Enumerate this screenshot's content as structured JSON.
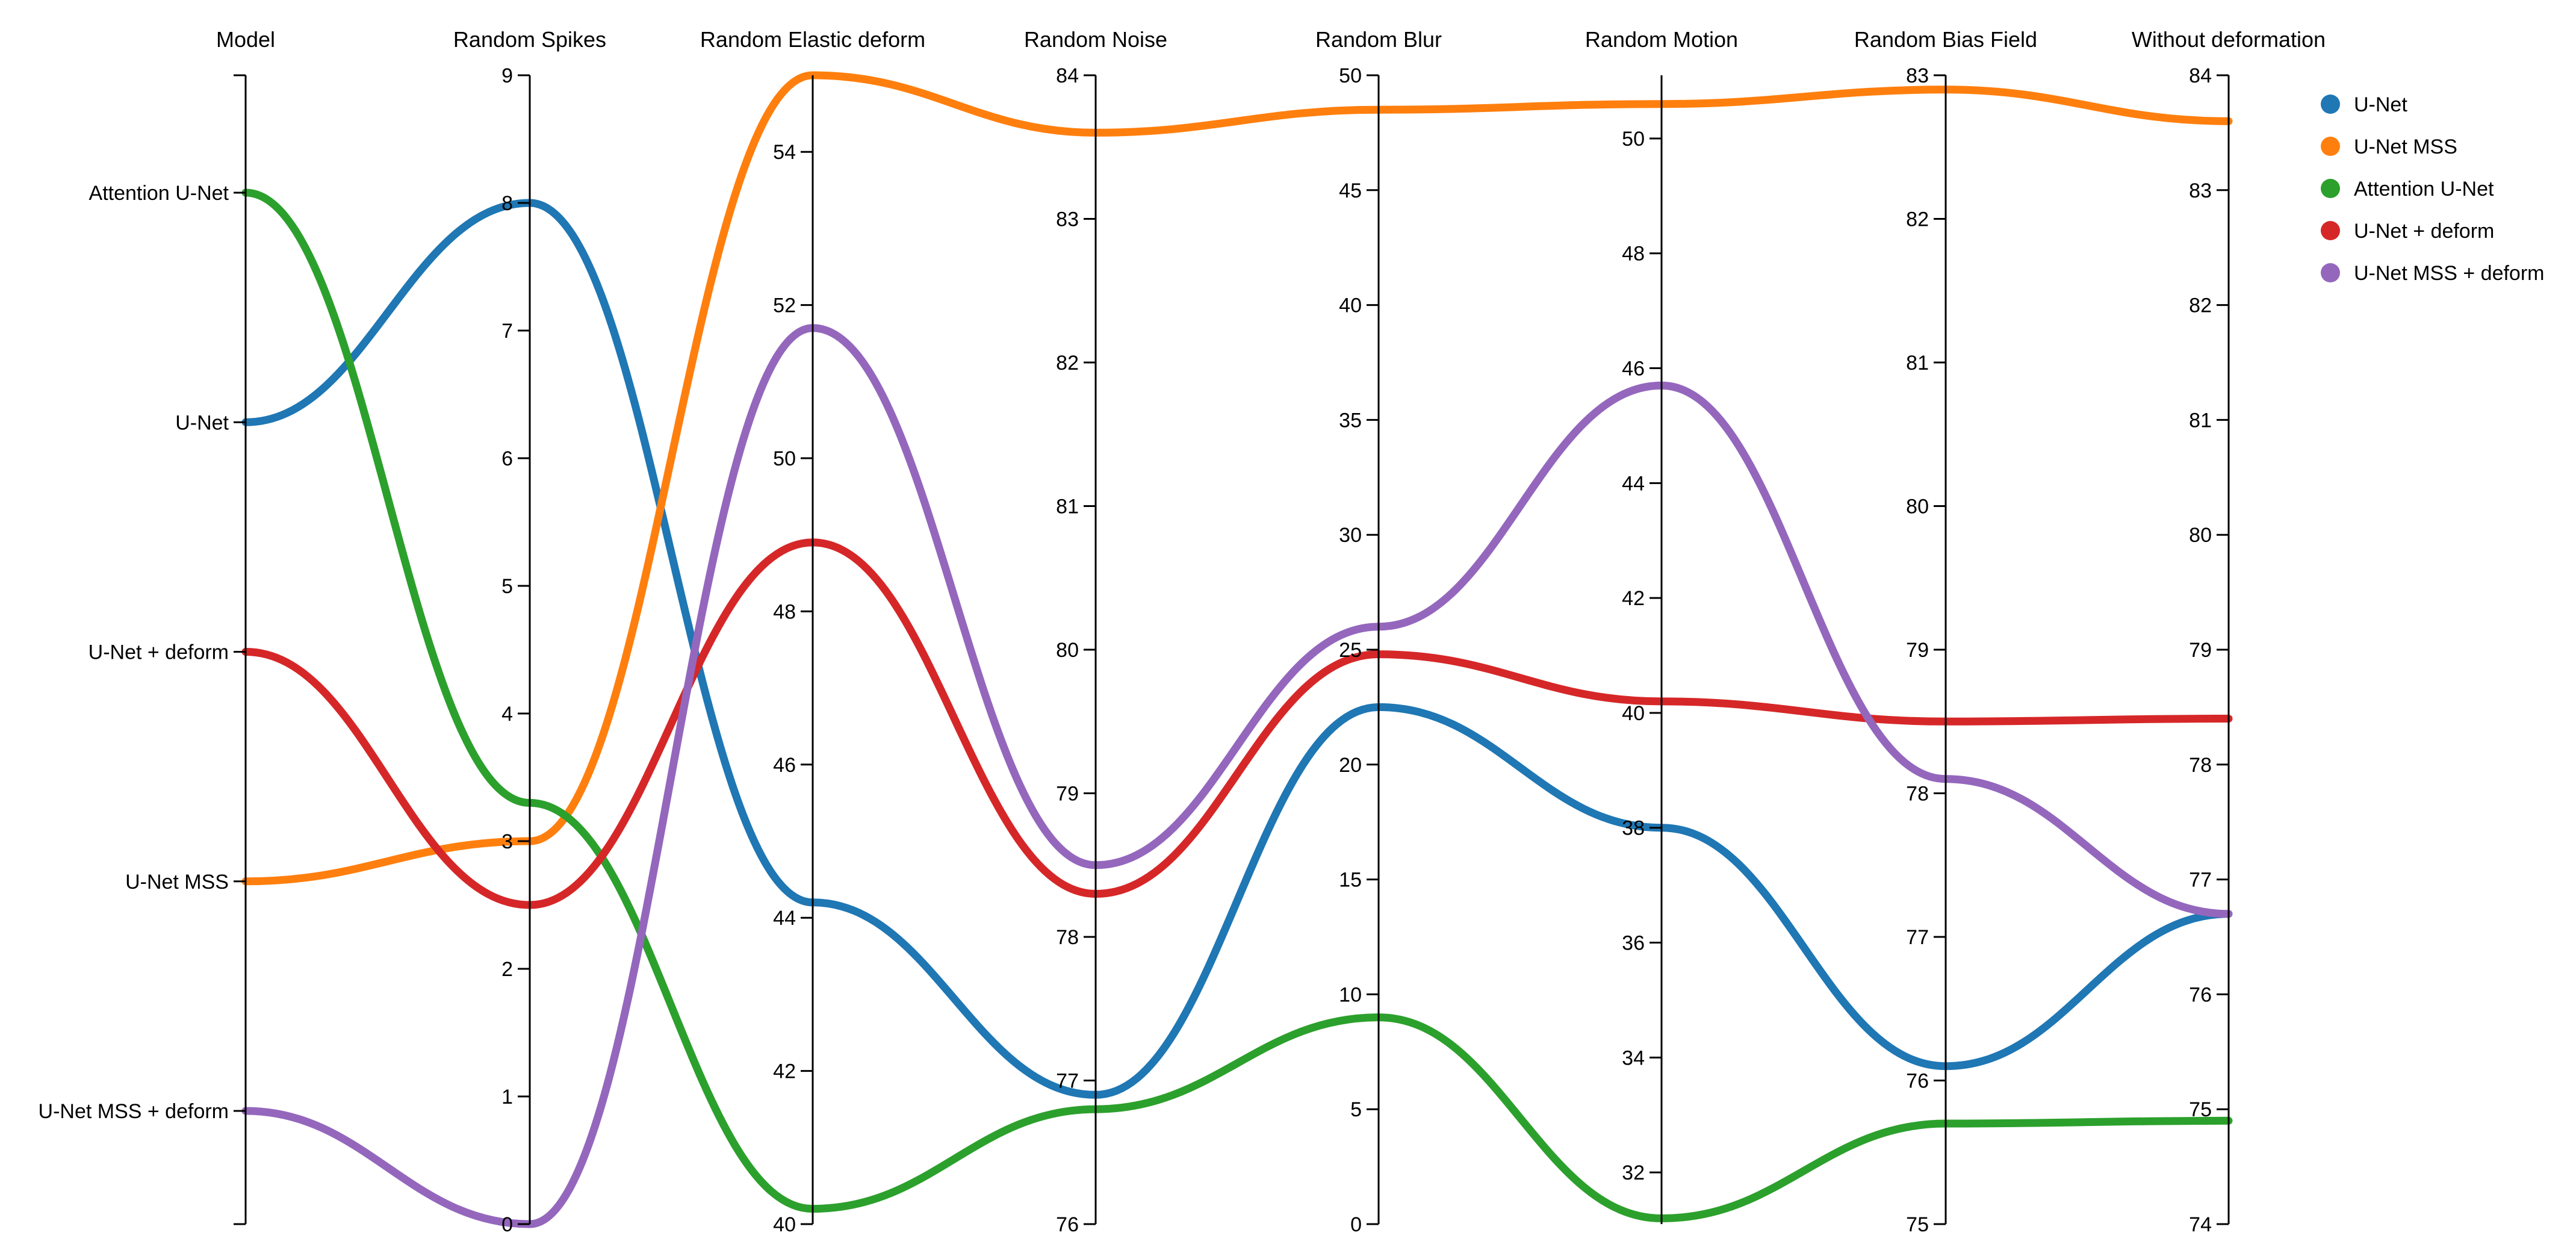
{
  "chart_data": {
    "type": "parallel-coordinates",
    "axes": [
      {
        "key": "model",
        "title": "Model",
        "kind": "categorical",
        "categories": [
          "Attention U-Net",
          "U-Net",
          "U-Net + deform",
          "U-Net MSS",
          "U-Net MSS + deform"
        ]
      },
      {
        "key": "spikes",
        "title": "Random Spikes",
        "kind": "numeric",
        "range": [
          0,
          9
        ],
        "ticks": [
          0,
          1,
          2,
          3,
          4,
          5,
          6,
          7,
          8,
          9
        ]
      },
      {
        "key": "elastic",
        "title": "Random Elastic deform",
        "kind": "numeric",
        "range": [
          40,
          55
        ],
        "ticks": [
          40,
          42,
          44,
          46,
          48,
          50,
          52,
          54
        ]
      },
      {
        "key": "noise",
        "title": "Random Noise",
        "kind": "numeric",
        "range": [
          76,
          84
        ],
        "ticks": [
          76,
          77,
          78,
          79,
          80,
          81,
          82,
          83,
          84
        ]
      },
      {
        "key": "blur",
        "title": "Random Blur",
        "kind": "numeric",
        "range": [
          0,
          50
        ],
        "ticks": [
          0,
          5,
          10,
          15,
          20,
          25,
          30,
          35,
          40,
          45,
          50
        ]
      },
      {
        "key": "motion",
        "title": "Random Motion",
        "kind": "numeric",
        "range": [
          31.1,
          51.1
        ],
        "ticks": [
          32,
          34,
          36,
          38,
          40,
          42,
          44,
          46,
          48,
          50
        ]
      },
      {
        "key": "bias",
        "title": "Random Bias Field",
        "kind": "numeric",
        "range": [
          75,
          83
        ],
        "ticks": [
          75,
          76,
          77,
          78,
          79,
          80,
          81,
          82,
          83
        ]
      },
      {
        "key": "without",
        "title": "Without deformation",
        "kind": "numeric",
        "range": [
          74,
          84
        ],
        "ticks": [
          74,
          75,
          76,
          77,
          78,
          79,
          80,
          81,
          82,
          83,
          84
        ]
      }
    ],
    "series": [
      {
        "name": "U-Net",
        "color": "#1f77b4",
        "values": {
          "model": "U-Net",
          "spikes": 8.0,
          "elastic": 44.2,
          "noise": 76.9,
          "blur": 22.5,
          "motion": 38.0,
          "bias": 76.1,
          "without": 76.7
        }
      },
      {
        "name": "U-Net MSS",
        "color": "#ff7f0e",
        "values": {
          "model": "U-Net MSS",
          "spikes": 3.0,
          "elastic": 55.0,
          "noise": 83.6,
          "blur": 48.5,
          "motion": 50.6,
          "bias": 82.9,
          "without": 83.6
        }
      },
      {
        "name": "Attention U-Net",
        "color": "#2ca02c",
        "values": {
          "model": "Attention U-Net",
          "spikes": 3.3,
          "elastic": 40.2,
          "noise": 76.8,
          "blur": 9.0,
          "motion": 31.2,
          "bias": 75.7,
          "without": 74.9
        }
      },
      {
        "name": "U-Net + deform",
        "color": "#d62728",
        "values": {
          "model": "U-Net + deform",
          "spikes": 2.5,
          "elastic": 48.9,
          "noise": 78.3,
          "blur": 24.8,
          "motion": 40.2,
          "bias": 78.5,
          "without": 78.4
        }
      },
      {
        "name": "U-Net MSS + deform",
        "color": "#9467bd",
        "values": {
          "model": "U-Net MSS + deform",
          "spikes": 0.0,
          "elastic": 51.7,
          "noise": 78.5,
          "blur": 26.0,
          "motion": 45.7,
          "bias": 78.1,
          "without": 76.7
        }
      }
    ],
    "legend": {
      "position": "top-right"
    }
  }
}
